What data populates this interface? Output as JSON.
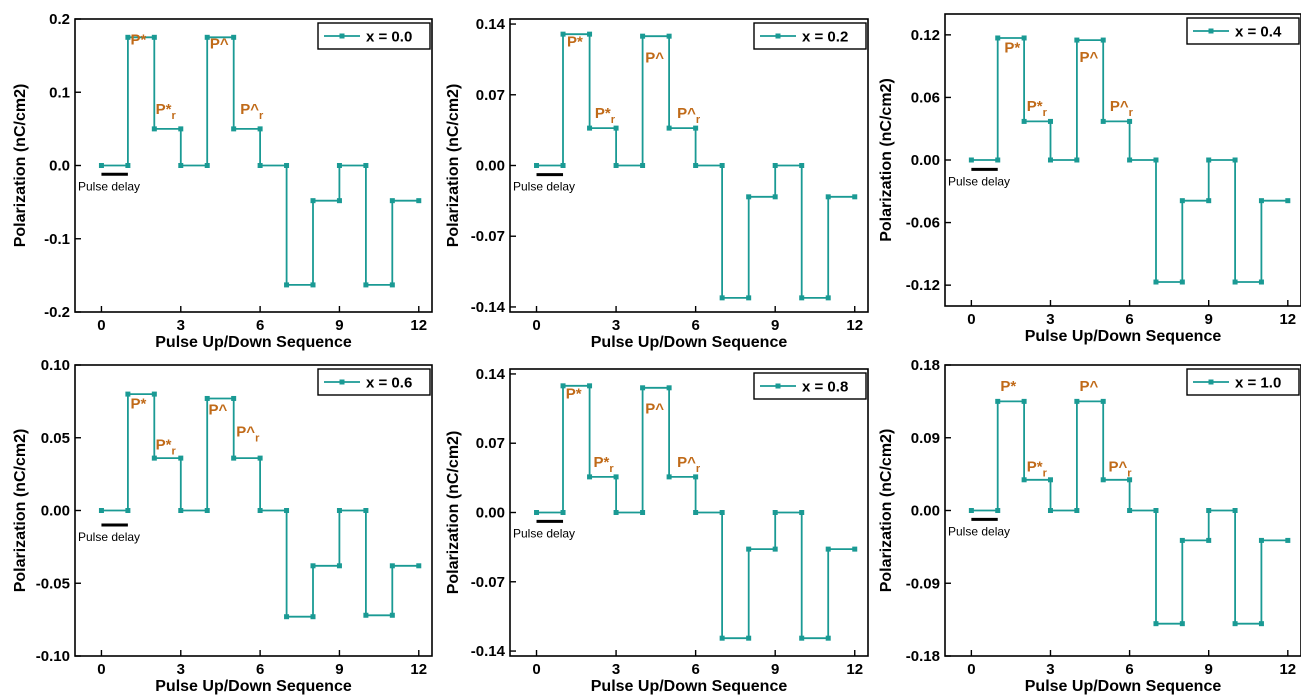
{
  "colors": {
    "series": "#1a9a94",
    "annotation": "#c06a18",
    "axis": "#000000"
  },
  "chart_data": [
    {
      "type": "line",
      "xlabel": "Pulse Up/Down Sequence",
      "ylabel": "Polarization (nC/cm2)",
      "ylim": [
        -0.2,
        0.2
      ],
      "yticks": [
        -0.2,
        -0.1,
        0.0,
        0.1,
        0.2
      ],
      "ytick_labels": [
        "-0.2",
        "-0.1",
        "0.0",
        "0.1",
        "0.2"
      ],
      "xlim": [
        -1,
        12.5
      ],
      "xticks": [
        0,
        3,
        6,
        9,
        12
      ],
      "xtick_labels": [
        "0",
        "3",
        "6",
        "9",
        "12"
      ],
      "grid": false,
      "legend_position": "top-right",
      "series": [
        {
          "name": "x = 0.0",
          "x": [
            0,
            1,
            1,
            2,
            2,
            3,
            3,
            4,
            4,
            5,
            5,
            6,
            6,
            7,
            7,
            8,
            8,
            9,
            9,
            10,
            10,
            11,
            11,
            12
          ],
          "y": [
            0,
            0,
            0.175,
            0.175,
            0.05,
            0.05,
            0,
            0,
            0.175,
            0.175,
            0.05,
            0.05,
            0,
            0,
            -0.163,
            -0.163,
            -0.048,
            -0.048,
            0,
            0,
            -0.163,
            -0.163,
            -0.048,
            -0.048
          ]
        }
      ],
      "annotations": [
        {
          "text": "P*",
          "sub": "",
          "x": 1.1,
          "y": 0.165
        },
        {
          "text": "P*",
          "sub": "r",
          "x": 2.05,
          "y": 0.07
        },
        {
          "text": "P^",
          "sub": "",
          "x": 4.1,
          "y": 0.16
        },
        {
          "text": "P^",
          "sub": "r",
          "x": 5.25,
          "y": 0.07
        }
      ],
      "pulse_delay": {
        "label": "Pulse delay",
        "x0": 0,
        "x1": 1,
        "y": -0.012
      }
    },
    {
      "type": "line",
      "xlabel": "Pulse Up/Down Sequence",
      "ylabel": "Polarization (nC/cm2)",
      "ylim": [
        -0.145,
        0.145
      ],
      "yticks": [
        -0.14,
        -0.07,
        0.0,
        0.07,
        0.14
      ],
      "ytick_labels": [
        "-0.14",
        "-0.07",
        "0.00",
        "0.07",
        "0.14"
      ],
      "xlim": [
        -1,
        12.5
      ],
      "xticks": [
        0,
        3,
        6,
        9,
        12
      ],
      "xtick_labels": [
        "0",
        "3",
        "6",
        "9",
        "12"
      ],
      "grid": false,
      "legend_position": "top-right",
      "series": [
        {
          "name": "x = 0.2",
          "x": [
            0,
            1,
            1,
            2,
            2,
            3,
            3,
            4,
            4,
            5,
            5,
            6,
            6,
            7,
            7,
            8,
            8,
            9,
            9,
            10,
            10,
            11,
            11,
            12
          ],
          "y": [
            0,
            0,
            0.13,
            0.13,
            0.037,
            0.037,
            0,
            0,
            0.128,
            0.128,
            0.037,
            0.037,
            0,
            0,
            -0.131,
            -0.131,
            -0.031,
            -0.031,
            0,
            0,
            -0.131,
            -0.131,
            -0.031,
            -0.031
          ]
        }
      ],
      "annotations": [
        {
          "text": "P*",
          "sub": "",
          "x": 1.15,
          "y": 0.118
        },
        {
          "text": "P*",
          "sub": "r",
          "x": 2.2,
          "y": 0.047
        },
        {
          "text": "P^",
          "sub": "",
          "x": 4.1,
          "y": 0.102
        },
        {
          "text": "P^",
          "sub": "r",
          "x": 5.3,
          "y": 0.047
        }
      ],
      "pulse_delay": {
        "label": "Pulse delay",
        "x0": 0,
        "x1": 1,
        "y": -0.009
      }
    },
    {
      "type": "line",
      "xlabel": "Pulse Up/Down Sequence",
      "ylabel": "Polarization (nC/cm2)",
      "ylim": [
        -0.14,
        0.14
      ],
      "yticks": [
        -0.12,
        -0.06,
        0.0,
        0.06,
        0.12
      ],
      "ytick_labels": [
        "-0.12",
        "-0.06",
        "0.00",
        "0.06",
        "0.12"
      ],
      "xlim": [
        -1,
        12.5
      ],
      "xticks": [
        0,
        3,
        6,
        9,
        12
      ],
      "xtick_labels": [
        "0",
        "3",
        "6",
        "9",
        "12"
      ],
      "grid": false,
      "legend_position": "top-right",
      "series": [
        {
          "name": "x = 0.4",
          "x": [
            0,
            1,
            1,
            2,
            2,
            3,
            3,
            4,
            4,
            5,
            5,
            6,
            6,
            7,
            7,
            8,
            8,
            9,
            9,
            10,
            10,
            11,
            11,
            12
          ],
          "y": [
            0,
            0,
            0.117,
            0.117,
            0.037,
            0.037,
            0,
            0,
            0.115,
            0.115,
            0.037,
            0.037,
            0,
            0,
            -0.117,
            -0.117,
            -0.039,
            -0.039,
            0,
            0,
            -0.117,
            -0.117,
            -0.039,
            -0.039
          ]
        }
      ],
      "annotations": [
        {
          "text": "P*",
          "sub": "",
          "x": 1.25,
          "y": 0.103
        },
        {
          "text": "P*",
          "sub": "r",
          "x": 2.1,
          "y": 0.047
        },
        {
          "text": "P^",
          "sub": "",
          "x": 4.1,
          "y": 0.094
        },
        {
          "text": "P^",
          "sub": "r",
          "x": 5.25,
          "y": 0.047
        }
      ],
      "pulse_delay": {
        "label": "Pulse delay",
        "x0": 0,
        "x1": 1,
        "y": -0.009
      }
    },
    {
      "type": "line",
      "xlabel": "Pulse Up/Down Sequence",
      "ylabel": "Polarization (nC/cm2)",
      "ylim": [
        -0.1,
        0.1
      ],
      "yticks": [
        -0.1,
        -0.05,
        0.0,
        0.05,
        0.1
      ],
      "ytick_labels": [
        "-0.10",
        "-0.05",
        "0.00",
        "0.05",
        "0.10"
      ],
      "xlim": [
        -1,
        12.5
      ],
      "xticks": [
        0,
        3,
        6,
        9,
        12
      ],
      "xtick_labels": [
        "0",
        "3",
        "6",
        "9",
        "12"
      ],
      "grid": false,
      "legend_position": "top-right",
      "series": [
        {
          "name": "x = 0.6",
          "x": [
            0,
            1,
            1,
            2,
            2,
            3,
            3,
            4,
            4,
            5,
            5,
            6,
            6,
            7,
            7,
            8,
            8,
            9,
            9,
            10,
            10,
            11,
            11,
            12
          ],
          "y": [
            0,
            0,
            0.08,
            0.08,
            0.036,
            0.036,
            0,
            0,
            0.077,
            0.077,
            0.036,
            0.036,
            0,
            0,
            -0.073,
            -0.073,
            -0.038,
            -0.038,
            0,
            0,
            -0.072,
            -0.072,
            -0.038,
            -0.038
          ]
        }
      ],
      "annotations": [
        {
          "text": "P*",
          "sub": "",
          "x": 1.1,
          "y": 0.07
        },
        {
          "text": "P*",
          "sub": "r",
          "x": 2.05,
          "y": 0.042
        },
        {
          "text": "P^",
          "sub": "",
          "x": 4.05,
          "y": 0.066
        },
        {
          "text": "P^",
          "sub": "r",
          "x": 5.1,
          "y": 0.051
        }
      ],
      "pulse_delay": {
        "label": "Pulse delay",
        "x0": 0,
        "x1": 1,
        "y": -0.01
      }
    },
    {
      "type": "line",
      "xlabel": "Pulse Up/Down Sequence",
      "ylabel": "Polarization (nC/cm2)",
      "ylim": [
        -0.145,
        0.145
      ],
      "yticks": [
        -0.14,
        -0.07,
        0.0,
        0.07,
        0.14
      ],
      "ytick_labels": [
        "-0.14",
        "-0.07",
        "0.00",
        "0.07",
        "0.14"
      ],
      "xlim": [
        -1,
        12.5
      ],
      "xticks": [
        0,
        3,
        6,
        9,
        12
      ],
      "xtick_labels": [
        "0",
        "3",
        "6",
        "9",
        "12"
      ],
      "grid": false,
      "legend_position": "top-right",
      "series": [
        {
          "name": "x = 0.8",
          "x": [
            0,
            1,
            1,
            2,
            2,
            3,
            3,
            4,
            4,
            5,
            5,
            6,
            6,
            7,
            7,
            8,
            8,
            9,
            9,
            10,
            10,
            11,
            11,
            12
          ],
          "y": [
            0,
            0,
            0.128,
            0.128,
            0.036,
            0.036,
            0,
            0,
            0.126,
            0.126,
            0.036,
            0.036,
            0,
            0,
            -0.127,
            -0.127,
            -0.037,
            -0.037,
            0,
            0,
            -0.127,
            -0.127,
            -0.037,
            -0.037
          ]
        }
      ],
      "annotations": [
        {
          "text": "P*",
          "sub": "",
          "x": 1.1,
          "y": 0.115
        },
        {
          "text": "P*",
          "sub": "r",
          "x": 2.15,
          "y": 0.046
        },
        {
          "text": "P^",
          "sub": "",
          "x": 4.1,
          "y": 0.1
        },
        {
          "text": "P^",
          "sub": "r",
          "x": 5.3,
          "y": 0.046
        }
      ],
      "pulse_delay": {
        "label": "Pulse delay",
        "x0": 0,
        "x1": 1,
        "y": -0.009
      }
    },
    {
      "type": "line",
      "xlabel": "Pulse Up/Down Sequence",
      "ylabel": "Polarization (nC/cm2)",
      "ylim": [
        -0.18,
        0.18
      ],
      "yticks": [
        -0.18,
        -0.09,
        0.0,
        0.09,
        0.18
      ],
      "ytick_labels": [
        "-0.18",
        "-0.09",
        "0.00",
        "0.09",
        "0.18"
      ],
      "xlim": [
        -1,
        12.5
      ],
      "xticks": [
        0,
        3,
        6,
        9,
        12
      ],
      "xtick_labels": [
        "0",
        "3",
        "6",
        "9",
        "12"
      ],
      "grid": false,
      "legend_position": "top-right",
      "series": [
        {
          "name": "x = 1.0",
          "x": [
            0,
            1,
            1,
            2,
            2,
            3,
            3,
            4,
            4,
            5,
            5,
            6,
            6,
            7,
            7,
            8,
            8,
            9,
            9,
            10,
            10,
            11,
            11,
            12
          ],
          "y": [
            0,
            0,
            0.135,
            0.135,
            0.038,
            0.038,
            0,
            0,
            0.135,
            0.135,
            0.038,
            0.038,
            0,
            0,
            -0.14,
            -0.14,
            -0.037,
            -0.037,
            0,
            0,
            -0.14,
            -0.14,
            -0.037,
            -0.037
          ]
        }
      ],
      "annotations": [
        {
          "text": "P*",
          "sub": "",
          "x": 1.1,
          "y": 0.148
        },
        {
          "text": "P*",
          "sub": "r",
          "x": 2.1,
          "y": 0.048
        },
        {
          "text": "P^",
          "sub": "",
          "x": 4.1,
          "y": 0.148
        },
        {
          "text": "P^",
          "sub": "r",
          "x": 5.2,
          "y": 0.048
        }
      ],
      "pulse_delay": {
        "label": "Pulse delay",
        "x0": 0,
        "x1": 1,
        "y": -0.011
      }
    }
  ]
}
